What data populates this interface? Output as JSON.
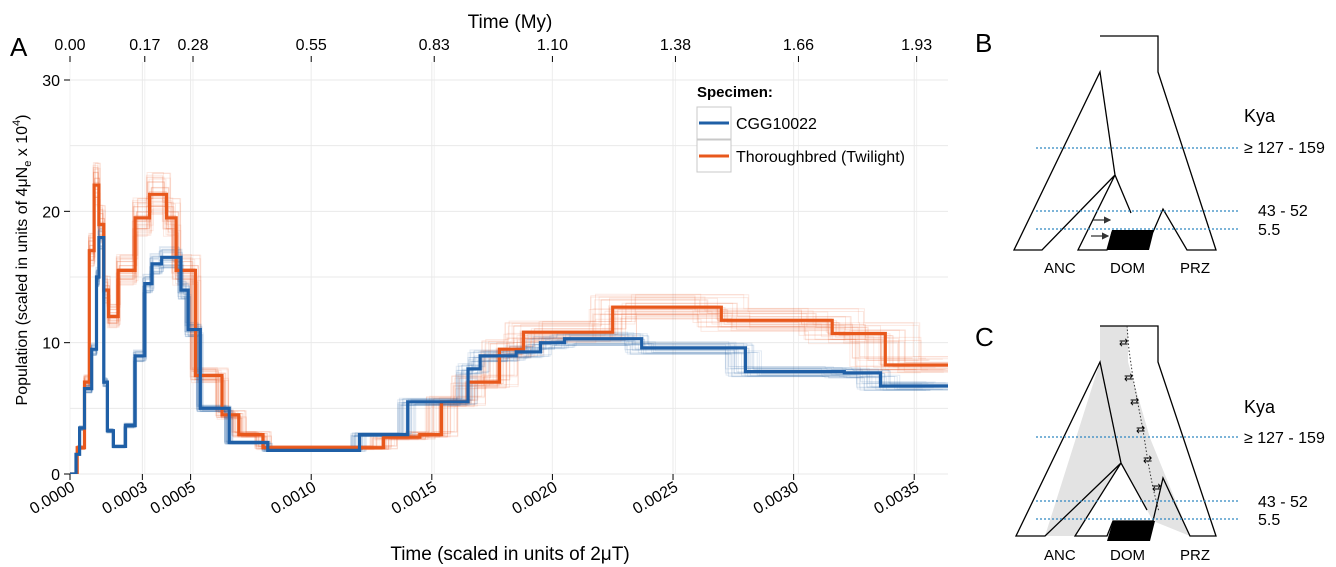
{
  "panels": {
    "a": "A",
    "b": "B",
    "c": "C"
  },
  "colors": {
    "blue": "#1f5fa6",
    "orange": "#e8581c",
    "grid": "#e8e8e8",
    "dashed": "#2e86c1",
    "grey_fill": "#e3e3e3"
  },
  "chart_data": {
    "type": "line",
    "title": "",
    "xlabel": "Time (scaled in units of 2μT)",
    "ylabel_prefix": "Population (scaled in units of 4μN",
    "ylabel_sub": "e",
    "ylabel_mid": " x 10",
    "ylabel_sup": "4",
    "ylabel_suffix": ")",
    "top_axis_label": "Time (My)",
    "xlim": [
      0,
      0.00364
    ],
    "ylim": [
      0,
      30
    ],
    "x_ticks": [
      0,
      0.0003,
      0.0005,
      0.001,
      0.0015,
      0.002,
      0.0025,
      0.003,
      0.0035
    ],
    "x_tick_labels": [
      "0.0000",
      "0.0003",
      "0.0005",
      "0.0010",
      "0.0015",
      "0.0020",
      "0.0025",
      "0.0030",
      "0.0035"
    ],
    "top_ticks": [
      0,
      0.00031,
      0.00051,
      0.001,
      0.00151,
      0.002,
      0.00251,
      0.00302,
      0.00351
    ],
    "top_tick_labels": [
      "0.00",
      "0.17",
      "0.28",
      "0.55",
      "0.83",
      "1.10",
      "1.38",
      "1.66",
      "1.93"
    ],
    "y_ticks": [
      0,
      10,
      20,
      30
    ],
    "y_tick_labels": [
      "0",
      "10",
      "20",
      "30"
    ],
    "grid": true,
    "legend": {
      "title": "Specimen:",
      "position": "top-right",
      "entries": [
        "CGG10022",
        "Thoroughbred (Twilight)"
      ]
    },
    "series": [
      {
        "name": "CGG10022",
        "color": "#1f5fa6",
        "points": [
          [
            0,
            0
          ],
          [
            2.5e-05,
            0
          ],
          [
            2.5e-05,
            1.5
          ],
          [
            4e-05,
            1.5
          ],
          [
            4e-05,
            3.5
          ],
          [
            6e-05,
            3.5
          ],
          [
            6e-05,
            6.5
          ],
          [
            9e-05,
            6.5
          ],
          [
            9e-05,
            9.5
          ],
          [
            0.00011,
            9.5
          ],
          [
            0.00011,
            15
          ],
          [
            0.00012,
            15
          ],
          [
            0.00012,
            18
          ],
          [
            0.00014,
            18
          ],
          [
            0.00014,
            7
          ],
          [
            0.000155,
            7
          ],
          [
            0.000155,
            3.3
          ],
          [
            0.00018,
            3.3
          ],
          [
            0.00018,
            2.1
          ],
          [
            0.00023,
            2.1
          ],
          [
            0.00023,
            3.7
          ],
          [
            0.00027,
            3.7
          ],
          [
            0.00027,
            9
          ],
          [
            0.00031,
            9
          ],
          [
            0.00031,
            14.5
          ],
          [
            0.00034,
            14.5
          ],
          [
            0.00034,
            16
          ],
          [
            0.00038,
            16
          ],
          [
            0.00038,
            16.5
          ],
          [
            0.00046,
            16.5
          ],
          [
            0.00046,
            14
          ],
          [
            0.00049,
            14
          ],
          [
            0.00049,
            11
          ],
          [
            0.00054,
            11
          ],
          [
            0.00054,
            5
          ],
          [
            0.00066,
            5
          ],
          [
            0.00066,
            2.4
          ],
          [
            0.00082,
            2.4
          ],
          [
            0.00082,
            1.8
          ],
          [
            0.0012,
            1.8
          ],
          [
            0.0012,
            3
          ],
          [
            0.0014,
            3
          ],
          [
            0.0014,
            5.5
          ],
          [
            0.00165,
            5.5
          ],
          [
            0.00165,
            8
          ],
          [
            0.0017,
            8
          ],
          [
            0.0017,
            9
          ],
          [
            0.00185,
            9
          ],
          [
            0.00185,
            9.3
          ],
          [
            0.00195,
            9.3
          ],
          [
            0.00195,
            10
          ],
          [
            0.00205,
            10
          ],
          [
            0.00205,
            10.3
          ],
          [
            0.00237,
            10.3
          ],
          [
            0.00237,
            9.6
          ],
          [
            0.0028,
            9.6
          ],
          [
            0.0028,
            7.8
          ],
          [
            0.00321,
            7.8
          ],
          [
            0.00321,
            7.7
          ],
          [
            0.00336,
            7.7
          ],
          [
            0.00336,
            6.7
          ],
          [
            0.00364,
            6.7
          ]
        ]
      },
      {
        "name": "Thoroughbred (Twilight)",
        "color": "#e8581c",
        "points": [
          [
            0,
            0
          ],
          [
            3e-05,
            0
          ],
          [
            3e-05,
            2
          ],
          [
            6e-05,
            2
          ],
          [
            6e-05,
            7
          ],
          [
            8e-05,
            7
          ],
          [
            8e-05,
            17
          ],
          [
            0.0001,
            17
          ],
          [
            0.0001,
            22
          ],
          [
            0.00012,
            22
          ],
          [
            0.00012,
            19
          ],
          [
            0.00014,
            19
          ],
          [
            0.00014,
            14
          ],
          [
            0.00016,
            14
          ],
          [
            0.00016,
            12
          ],
          [
            0.0002,
            12
          ],
          [
            0.0002,
            15.5
          ],
          [
            0.00027,
            15.5
          ],
          [
            0.00027,
            19.5
          ],
          [
            0.00033,
            19.5
          ],
          [
            0.00033,
            21.3
          ],
          [
            0.0004,
            21.3
          ],
          [
            0.0004,
            19.5
          ],
          [
            0.00044,
            19.5
          ],
          [
            0.00044,
            15.5
          ],
          [
            0.00052,
            15.5
          ],
          [
            0.00052,
            7.5
          ],
          [
            0.00063,
            7.5
          ],
          [
            0.00063,
            4.5
          ],
          [
            0.0007,
            4.5
          ],
          [
            0.0007,
            3
          ],
          [
            0.0008,
            3
          ],
          [
            0.0008,
            2
          ],
          [
            0.0013,
            2
          ],
          [
            0.0013,
            2.8
          ],
          [
            0.00145,
            2.8
          ],
          [
            0.00145,
            3
          ],
          [
            0.00154,
            3
          ],
          [
            0.00154,
            5.5
          ],
          [
            0.00165,
            5.5
          ],
          [
            0.00165,
            7
          ],
          [
            0.00178,
            7
          ],
          [
            0.00178,
            9.5
          ],
          [
            0.00188,
            9.5
          ],
          [
            0.00188,
            10.8
          ],
          [
            0.00225,
            10.8
          ],
          [
            0.00225,
            12.7
          ],
          [
            0.0027,
            12.7
          ],
          [
            0.0027,
            11.7
          ],
          [
            0.00316,
            11.7
          ],
          [
            0.00316,
            10.7
          ],
          [
            0.00338,
            10.7
          ],
          [
            0.00338,
            8.3
          ],
          [
            0.00364,
            8.3
          ]
        ]
      }
    ]
  },
  "diagram_b": {
    "kya_title": "Kya",
    "levels": [
      "≥ 127 - 159",
      "43 - 52",
      "5.5"
    ],
    "populations": [
      "ANC",
      "DOM",
      "PRZ"
    ]
  },
  "diagram_c": {
    "kya_title": "Kya",
    "levels": [
      "≥ 127 - 159",
      "43 - 52",
      "5.5"
    ],
    "populations": [
      "ANC",
      "DOM",
      "PRZ"
    ]
  }
}
